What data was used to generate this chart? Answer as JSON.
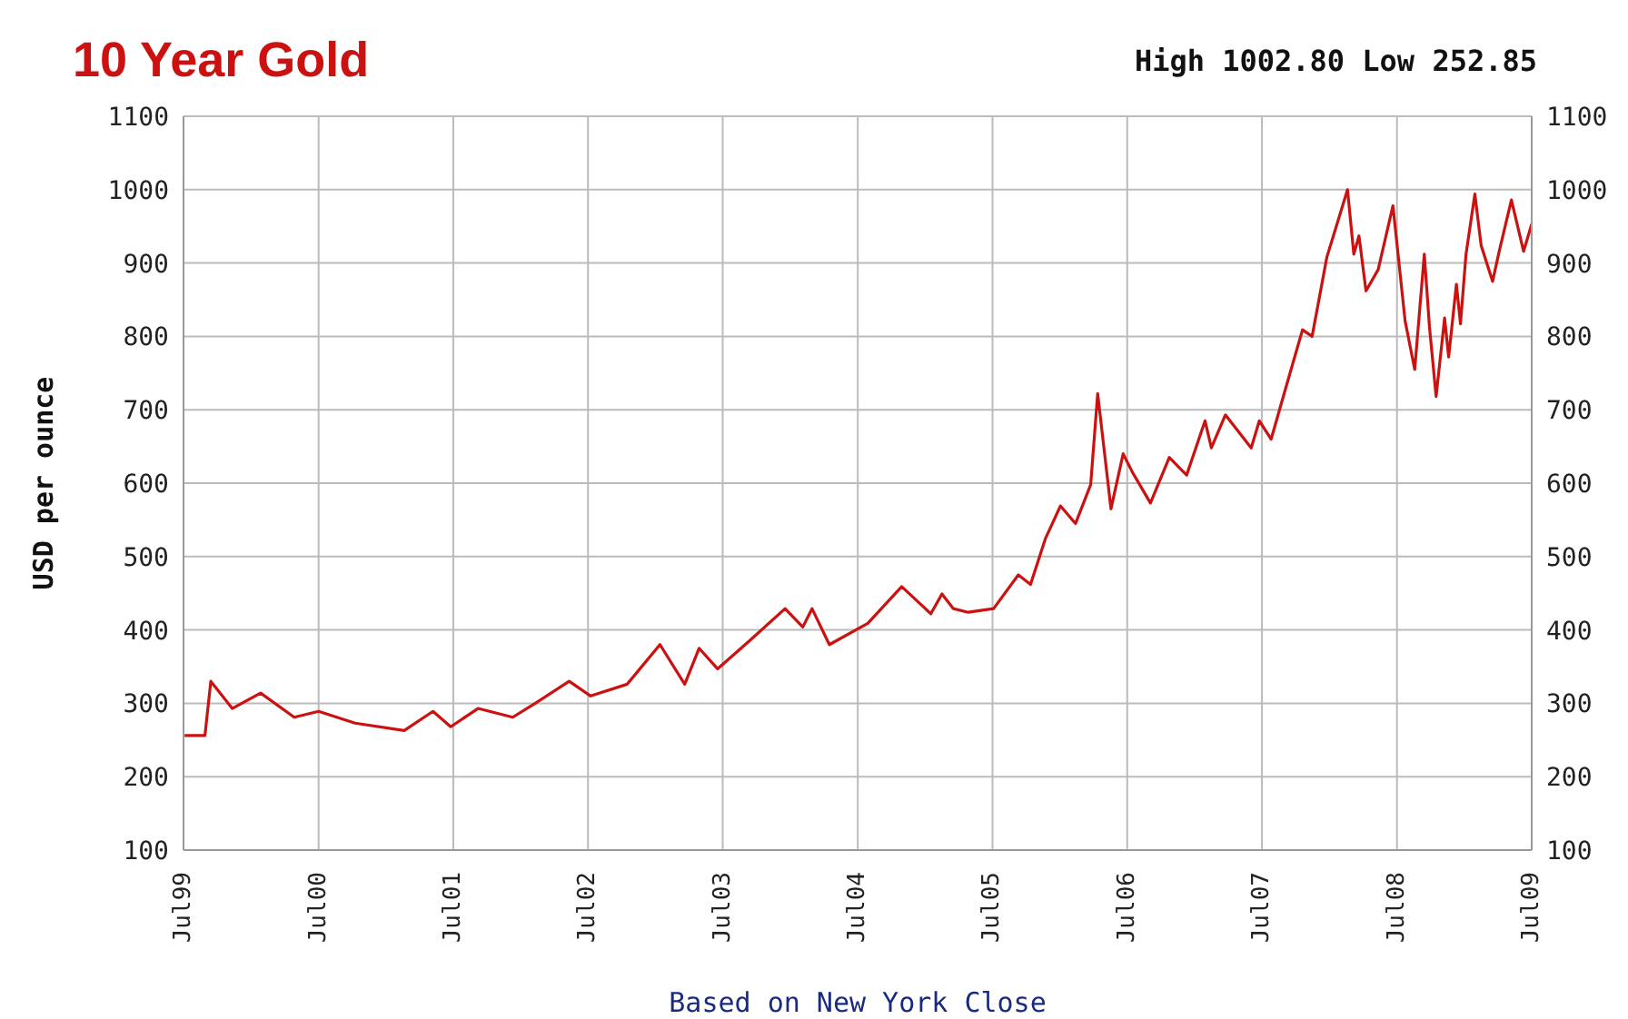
{
  "chart_data": {
    "type": "line",
    "title": "10 Year Gold",
    "annotations": [
      "High 1002.80 Low 252.85"
    ],
    "xlabel": "Based on New York Close",
    "ylabel": "USD per ounce",
    "x": [
      "1999-07-04",
      "1999-08-28",
      "1999-09-13",
      "1999-11-10",
      "2000-01-26",
      "2000-04-26",
      "2000-07-01",
      "2000-10-08",
      "2001-02-18",
      "2001-05-07",
      "2001-06-24",
      "2001-09-06",
      "2001-12-09",
      "2002-02-11",
      "2002-05-11",
      "2002-07-08",
      "2002-10-15",
      "2003-01-12",
      "2003-03-20",
      "2003-04-28",
      "2003-06-17",
      "2003-09-09",
      "2003-12-17",
      "2004-02-03",
      "2004-02-28",
      "2004-04-15",
      "2004-07-28",
      "2004-10-28",
      "2005-01-15",
      "2005-02-14",
      "2005-03-17",
      "2005-04-26",
      "2005-07-04",
      "2005-09-09",
      "2005-10-12",
      "2005-11-21",
      "2006-01-01",
      "2006-02-11",
      "2006-03-24",
      "2006-04-12",
      "2006-05-18",
      "2006-06-20",
      "2006-07-15",
      "2006-09-02",
      "2006-10-23",
      "2006-12-09",
      "2007-01-28",
      "2007-02-14",
      "2007-03-24",
      "2007-06-02",
      "2007-06-24",
      "2007-07-26",
      "2007-09-06",
      "2007-10-19",
      "2007-11-14",
      "2007-12-24",
      "2008-02-18",
      "2008-03-06",
      "2008-03-20",
      "2008-04-08",
      "2008-05-11",
      "2008-06-20",
      "2008-07-23",
      "2008-08-18",
      "2008-09-13",
      "2008-09-27",
      "2008-10-15",
      "2008-11-07",
      "2008-11-18",
      "2008-12-09",
      "2008-12-20",
      "2009-01-04",
      "2009-01-28",
      "2009-02-14",
      "2009-03-17",
      "2009-04-04",
      "2009-05-07",
      "2009-06-09",
      "2009-07-01"
    ],
    "series": [
      {
        "color": "#cc1111",
        "values": [
          256,
          256,
          330,
          293,
          314,
          281,
          289,
          273,
          263,
          289,
          268,
          293,
          281,
          301,
          330,
          310,
          326,
          380,
          326,
          375,
          347,
          384,
          429,
          404,
          429,
          380,
          409,
          459,
          422,
          449,
          429,
          424,
          429,
          475,
          462,
          524,
          569,
          545,
          598,
          722,
          565,
          640,
          615,
          573,
          635,
          611,
          685,
          648,
          693,
          648,
          685,
          660,
          734,
          809,
          800,
          908,
          1000,
          912,
          937,
          862,
          891,
          978,
          821,
          755,
          912,
          813,
          718,
          825,
          772,
          871,
          817,
          912,
          994,
          924,
          875,
          916,
          986,
          916,
          953
        ]
      }
    ],
    "xlim": [
      "1999-07",
      "2009-07"
    ],
    "xticks": [
      {
        "value": "1999-07",
        "label": "Jul99"
      },
      {
        "value": "2000-07",
        "label": "Jul00"
      },
      {
        "value": "2001-07",
        "label": "Jul01"
      },
      {
        "value": "2002-07",
        "label": "Jul02"
      },
      {
        "value": "2003-07",
        "label": "Jul03"
      },
      {
        "value": "2004-07",
        "label": "Jul04"
      },
      {
        "value": "2005-07",
        "label": "Jul05"
      },
      {
        "value": "2006-07",
        "label": "Jul06"
      },
      {
        "value": "2007-07",
        "label": "Jul07"
      },
      {
        "value": "2008-07",
        "label": "Jul08"
      },
      {
        "value": "2009-07",
        "label": "Jul09"
      }
    ],
    "ylim": [
      100,
      1100
    ],
    "yticks": [
      100,
      200,
      300,
      400,
      500,
      600,
      700,
      800,
      900,
      1000,
      1100
    ],
    "y2lim": [
      100,
      1100
    ],
    "y2ticks": [
      100,
      200,
      300,
      400,
      500,
      600,
      700,
      800,
      900,
      1000,
      1100
    ],
    "grid": true
  }
}
